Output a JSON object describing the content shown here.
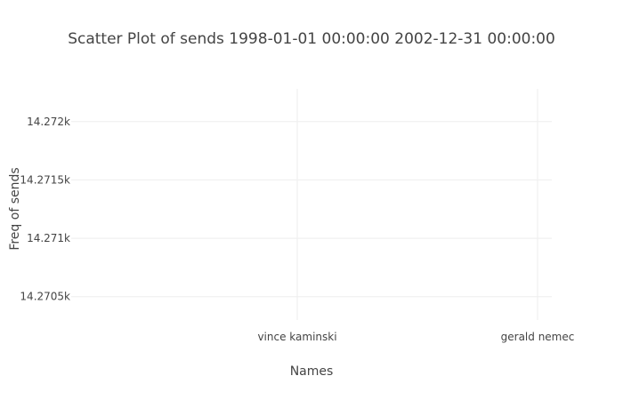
{
  "chart_data": {
    "type": "scatter",
    "title": "Scatter Plot of sends 1998-01-01 00:00:00 2002-12-31 00:00:00",
    "xlabel": "Names",
    "ylabel": "Freq of sends",
    "categories": [
      "vince kaminski",
      "gerald nemec"
    ],
    "y_ticks": [
      "14.2705k",
      "14.271k",
      "14.2715k",
      "14.272k"
    ],
    "y_tick_values": [
      14270.5,
      14271,
      14271.5,
      14272
    ],
    "ylim": [
      14270.3,
      14272.28
    ],
    "series": [
      {
        "x": [],
        "y": []
      }
    ],
    "grid": true,
    "colors": {
      "grid": "#eeeeee",
      "text": "#444444",
      "marker": "#1f77b4"
    }
  }
}
